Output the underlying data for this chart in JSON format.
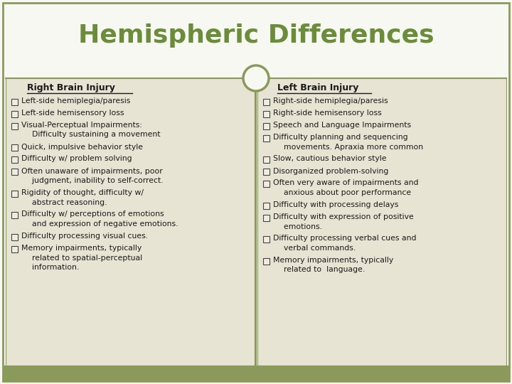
{
  "title": "Hemispheric Differences",
  "title_color": "#6b8c3a",
  "title_fontsize": 26,
  "bg_color": "#f8f8f3",
  "border_color": "#8a9a5b",
  "panel_bg": "#e8e4d4",
  "footer_color": "#8a9a5b",
  "left_heading": "Right Brain Injury",
  "right_heading": "Left Brain Injury",
  "heading_color": "#1a1a1a",
  "text_color": "#1a1a1a",
  "left_items": [
    [
      "Left-side hemiplegia/paresis"
    ],
    [
      "Left-side hemisensory loss"
    ],
    [
      "Visual-Perceptual Impairments:",
      "  Difficulty sustaining a movement"
    ],
    [
      "Quick, impulsive behavior style"
    ],
    [
      "Difficulty w/ problem solving"
    ],
    [
      "Often unaware of impairments, poor",
      "  judgment, inability to self-correct."
    ],
    [
      "Rigidity of thought, difficulty w/",
      "  abstract reasoning."
    ],
    [
      "Difficulty w/ perceptions of emotions",
      "  and expression of negative emotions."
    ],
    [
      "Difficulty processing visual cues."
    ],
    [
      "Memory impairments, typically",
      "  related to spatial-perceptual",
      "  information."
    ]
  ],
  "right_items": [
    [
      "Right-side hemiplegia/paresis"
    ],
    [
      "Right-side hemisensory loss"
    ],
    [
      "Speech and Language Impairments"
    ],
    [
      "Difficulty planning and sequencing",
      "  movements. Apraxia more common"
    ],
    [
      "Slow, cautious behavior style"
    ],
    [
      "Disorganized problem-solving"
    ],
    [
      "Often very aware of impairments and",
      "  anxious about poor performance"
    ],
    [
      "Difficulty with processing delays"
    ],
    [
      "Difficulty with expression of positive",
      "  emotions."
    ],
    [
      "Difficulty processing verbal cues and",
      "  verbal commands."
    ],
    [
      "Memory impairments, typically",
      "  related to  language."
    ]
  ],
  "fig_width": 7.2,
  "fig_height": 5.4,
  "dpi": 100
}
